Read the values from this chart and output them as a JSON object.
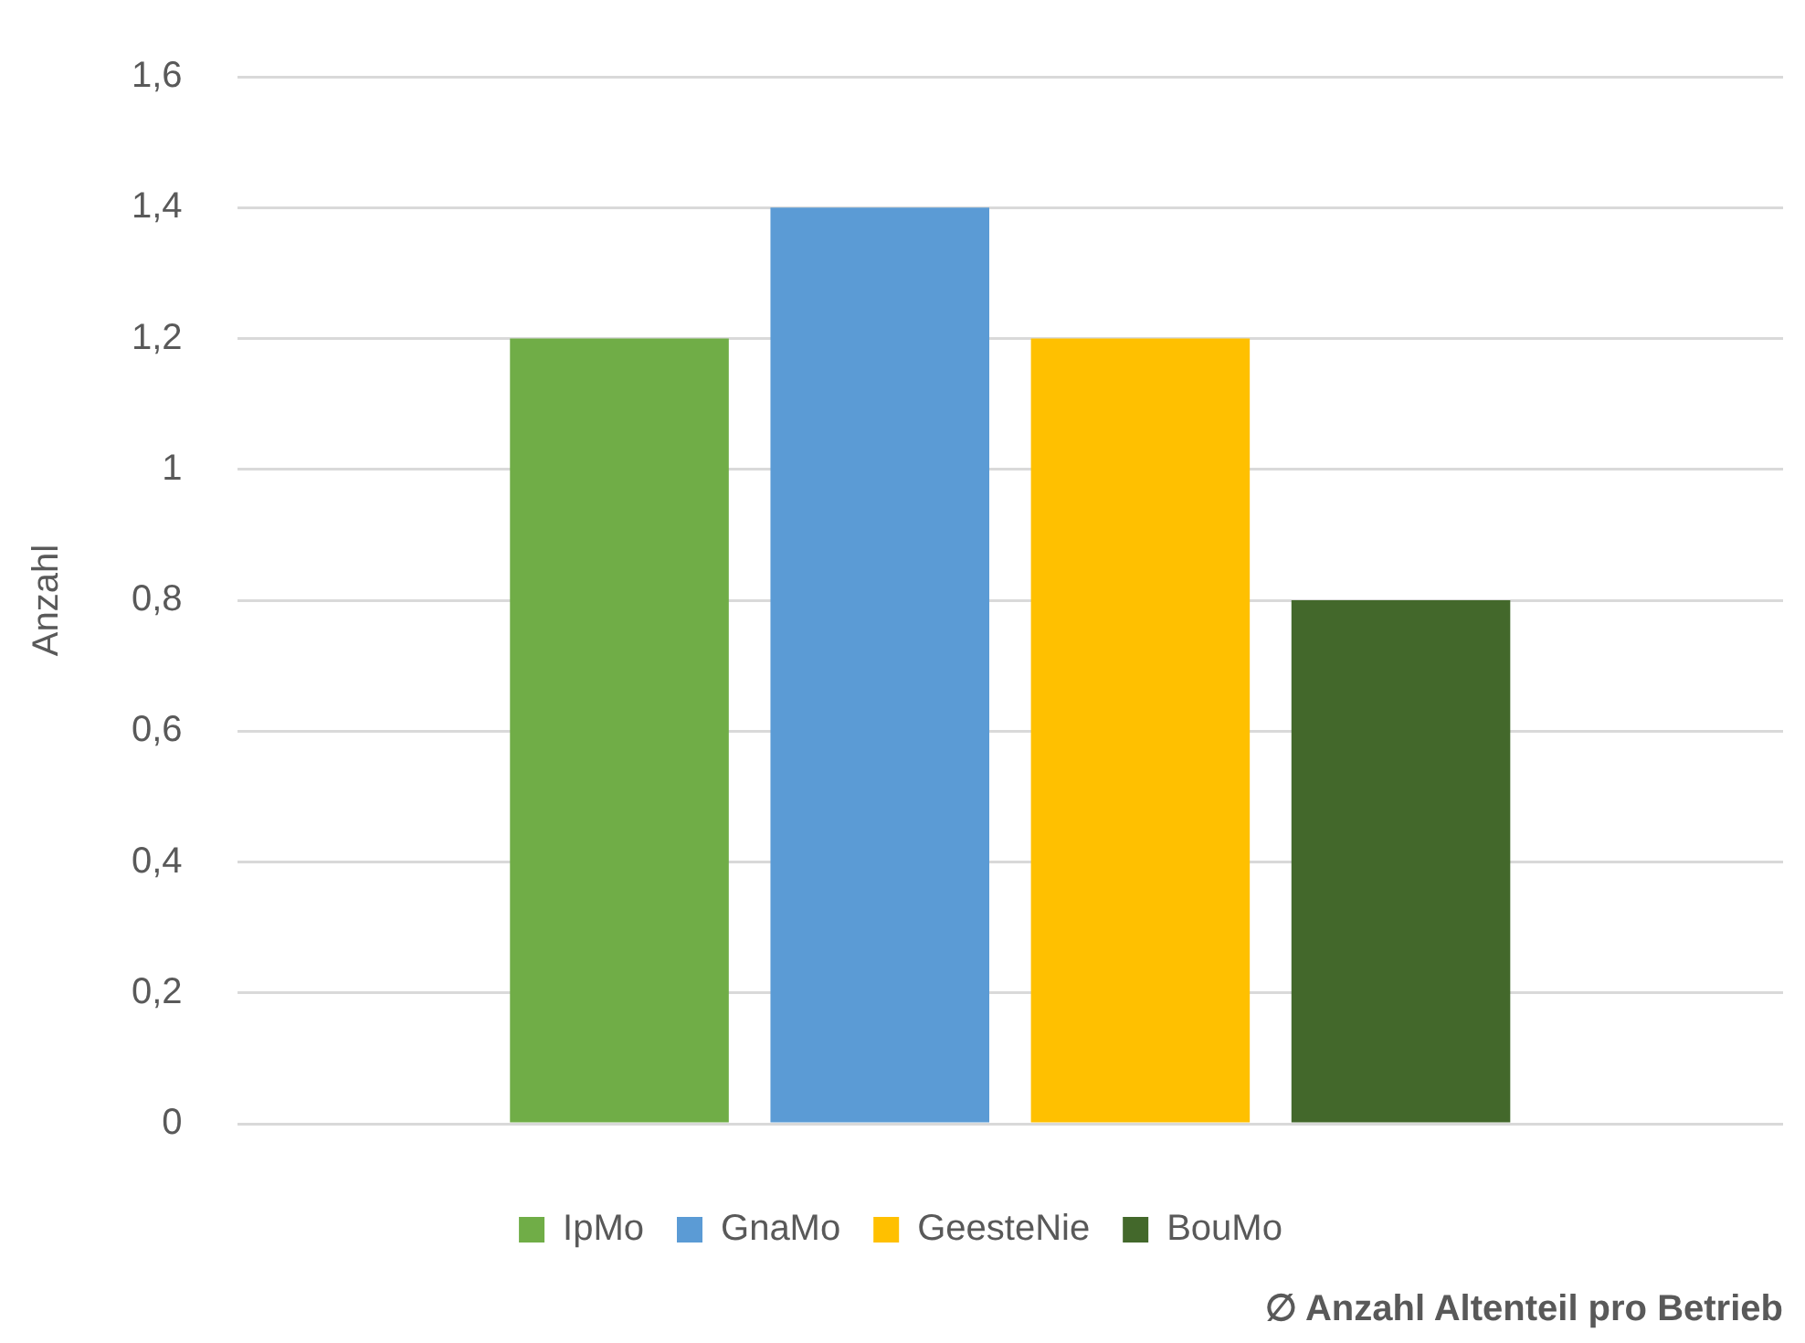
{
  "chart_data": {
    "type": "bar",
    "ylabel": "Anzahl",
    "xlabel": "∅ Anzahl Altenteil pro Betrieb",
    "categories": [
      null
    ],
    "series": [
      {
        "name": "IpMo",
        "color": "#70ad47",
        "values": [
          1.2
        ]
      },
      {
        "name": "GnaMo",
        "color": "#5b9bd5",
        "values": [
          1.4
        ]
      },
      {
        "name": "GeesteNie",
        "color": "#ffc000",
        "values": [
          1.2
        ]
      },
      {
        "name": "BouMo",
        "color": "#43682b",
        "values": [
          0.8
        ]
      }
    ],
    "ylim": [
      0,
      1.6
    ],
    "yticks": [
      {
        "value": 0,
        "label": "0"
      },
      {
        "value": 0.2,
        "label": "0,2"
      },
      {
        "value": 0.4,
        "label": "0,4"
      },
      {
        "value": 0.6,
        "label": "0,6"
      },
      {
        "value": 0.8,
        "label": "0,8"
      },
      {
        "value": 1,
        "label": "1"
      },
      {
        "value": 1.2,
        "label": "1,2"
      },
      {
        "value": 1.4,
        "label": "1,4"
      },
      {
        "value": 1.6,
        "label": "1,6"
      }
    ],
    "grid": "y",
    "legend": "bottom"
  }
}
